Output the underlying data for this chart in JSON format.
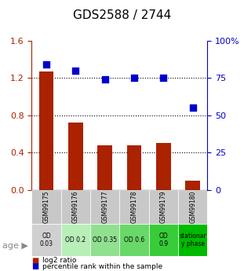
{
  "title": "GDS2588 / 2744",
  "samples": [
    "GSM99175",
    "GSM99176",
    "GSM99177",
    "GSM99178",
    "GSM99179",
    "GSM99180"
  ],
  "log2_ratio": [
    1.27,
    0.72,
    0.48,
    0.48,
    0.5,
    0.1
  ],
  "percentile_rank": [
    84,
    80,
    74,
    75,
    75,
    55
  ],
  "bar_color": "#aa2200",
  "dot_color": "#0000cc",
  "ylim_left": [
    0,
    1.6
  ],
  "ylim_right": [
    0,
    100
  ],
  "yticks_left": [
    0,
    0.4,
    0.8,
    1.2,
    1.6
  ],
  "yticks_right": [
    0,
    25,
    50,
    75,
    100
  ],
  "hlines": [
    0.4,
    0.8,
    1.2
  ],
  "age_labels": [
    "OD\n0.03",
    "OD 0.2",
    "OD 0.35",
    "OD 0.6",
    "OD\n0.9",
    "stationar\ny phase"
  ],
  "age_bg_colors": [
    "#d0d0d0",
    "#b8eeb8",
    "#90e090",
    "#68d868",
    "#38cc38",
    "#00bb00"
  ],
  "sample_bg_color": "#c8c8c8",
  "legend_items": [
    {
      "label": "log2 ratio",
      "color": "#aa2200",
      "marker": "s"
    },
    {
      "label": "percentile rank within the sample",
      "color": "#0000cc",
      "marker": "s"
    }
  ]
}
